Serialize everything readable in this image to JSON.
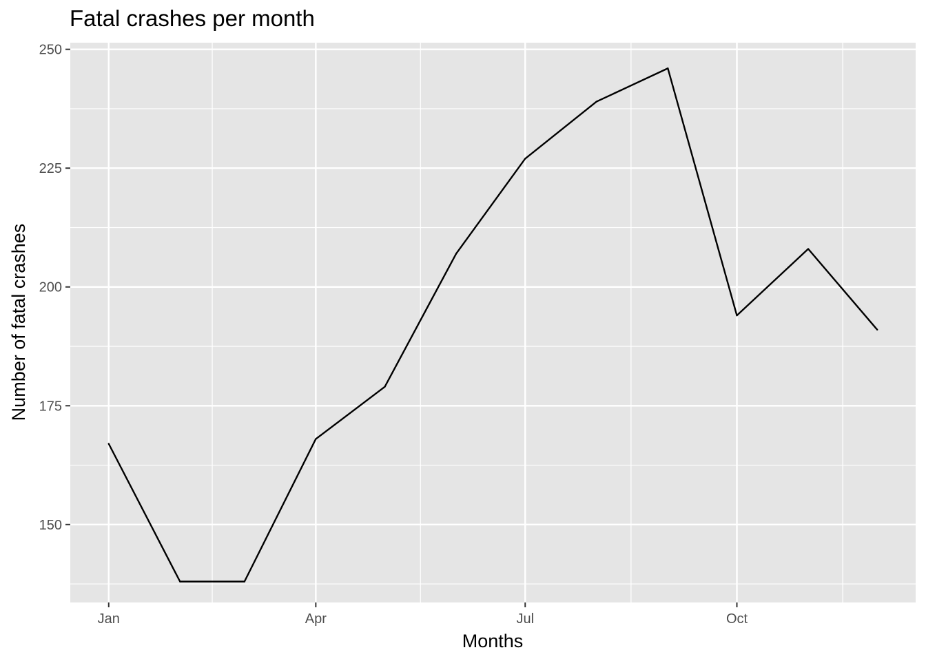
{
  "chart_data": {
    "type": "line",
    "title": "Fatal crashes per month",
    "xlabel": "Months",
    "ylabel": "Number of fatal crashes",
    "x": [
      "2023-01-01",
      "2023-02-01",
      "2023-03-01",
      "2023-04-01",
      "2023-05-01",
      "2023-06-01",
      "2023-07-01",
      "2023-08-01",
      "2023-09-01",
      "2023-10-01",
      "2023-11-01",
      "2023-12-01"
    ],
    "series": [
      {
        "values": [
          167,
          138,
          138,
          168,
          179,
          207,
          227,
          239,
          246,
          194,
          208,
          191
        ]
      }
    ],
    "x_ticks": [
      {
        "date": "2023-01-01",
        "label": "Jan"
      },
      {
        "date": "2023-04-01",
        "label": "Apr"
      },
      {
        "date": "2023-07-01",
        "label": "Jul"
      },
      {
        "date": "2023-10-01",
        "label": "Oct"
      }
    ],
    "y_ticks": [
      150,
      175,
      200,
      225,
      250
    ],
    "ylim": [
      133.6,
      251.4
    ],
    "grid": true,
    "legend": "none",
    "colors": {
      "panel": "#e5e5e5",
      "grid": "#ffffff",
      "line": "#000000",
      "tick_text": "#4d4d4d"
    }
  }
}
